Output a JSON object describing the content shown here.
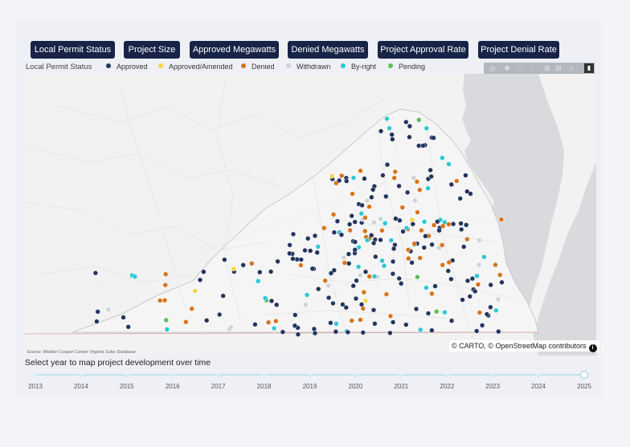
{
  "buttons": [
    "Local Permit Status",
    "Project Size",
    "Approved Megawatts",
    "Denied Megawatts",
    "Project Approval Rate",
    "Project Denial Rate"
  ],
  "legend": {
    "title": "Local Permit Status",
    "items": [
      {
        "label": "Approved",
        "color": "#23355f"
      },
      {
        "label": "Approved/Amended",
        "color": "#f5d547"
      },
      {
        "label": "Denied",
        "color": "#d9731a"
      },
      {
        "label": "Withdrawn",
        "color": "#cfd2d8"
      },
      {
        "label": "By-right",
        "color": "#2cc8d2"
      },
      {
        "label": "Pending",
        "color": "#5bbf55"
      }
    ]
  },
  "modebar_icons": [
    "camera-icon",
    "pan-icon",
    "box-select-icon",
    "lasso-icon",
    "zoom-in-icon",
    "zoom-out-icon",
    "home-icon",
    "plotly-logo-icon"
  ],
  "source_note": "Source: Weldon Cooper Center Virginia Solar Database",
  "attribution": "© CARTO, © OpenStreetMap contributors",
  "info_icon": "info-icon",
  "slider": {
    "label": "Select year to map project development over time",
    "years": [
      "2013",
      "2014",
      "2015",
      "2016",
      "2017",
      "2018",
      "2019",
      "2020",
      "2021",
      "2022",
      "2023",
      "2024",
      "2025"
    ],
    "selected": "2025"
  }
}
